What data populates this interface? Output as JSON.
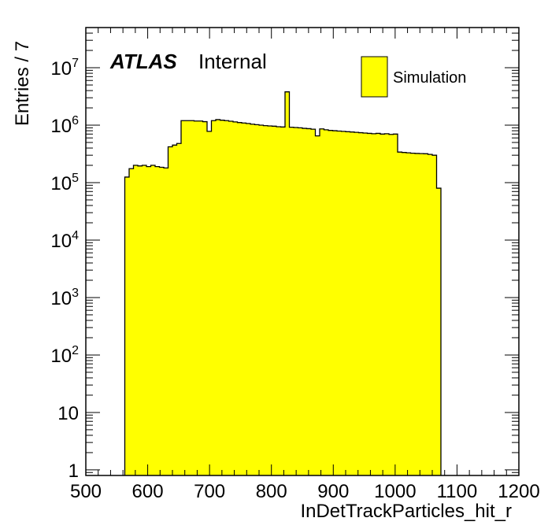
{
  "chart_data": {
    "type": "bar",
    "xlabel": "InDetTrackParticles_hit_r",
    "ylabel": "Entries / 7",
    "xlim": [
      500,
      1200
    ],
    "ylim": [
      0.8,
      50000000
    ],
    "yscale": "log",
    "grid": false,
    "legend_position": "top-right",
    "atlas_label": "ATLAS",
    "atlas_status": "Internal",
    "fill_color": "#ffff00",
    "line_color": "#000000",
    "bin_width": 7,
    "x_ticks": [
      "500",
      "600",
      "700",
      "800",
      "900",
      "1000",
      "1100",
      "1200"
    ],
    "x_tick_values": [
      500,
      600,
      700,
      800,
      900,
      1000,
      1100,
      1200
    ],
    "y_ticks": [
      {
        "value": 1,
        "base": "1",
        "exp": ""
      },
      {
        "value": 10,
        "base": "10",
        "exp": ""
      },
      {
        "value": 100,
        "base": "10",
        "exp": "2"
      },
      {
        "value": 1000,
        "base": "10",
        "exp": "3"
      },
      {
        "value": 10000,
        "base": "10",
        "exp": "4"
      },
      {
        "value": 100000,
        "base": "10",
        "exp": "5"
      },
      {
        "value": 1000000,
        "base": "10",
        "exp": "6"
      },
      {
        "value": 10000000,
        "base": "10",
        "exp": "7"
      }
    ],
    "series": [
      {
        "name": "Simulation",
        "x": [
          563,
          570,
          577,
          584,
          591,
          598,
          605,
          612,
          619,
          626,
          633,
          640,
          647,
          654,
          661,
          668,
          675,
          682,
          689,
          696,
          703,
          710,
          717,
          724,
          731,
          738,
          745,
          752,
          759,
          766,
          773,
          780,
          787,
          794,
          801,
          808,
          815,
          822,
          829,
          836,
          843,
          850,
          857,
          864,
          871,
          878,
          885,
          892,
          899,
          906,
          913,
          920,
          927,
          934,
          941,
          948,
          955,
          962,
          969,
          976,
          983,
          990,
          997,
          1004,
          1011,
          1018,
          1025,
          1032,
          1039,
          1046,
          1053,
          1060,
          1067
        ],
        "values": [
          125000,
          175000,
          200000,
          195000,
          200000,
          190000,
          200000,
          190000,
          185000,
          180000,
          420000,
          450000,
          480000,
          1200000,
          1200000,
          1200000,
          1180000,
          1180000,
          1150000,
          780000,
          1200000,
          1250000,
          1220000,
          1200000,
          1170000,
          1140000,
          1110000,
          1090000,
          1070000,
          1040000,
          1020000,
          1000000,
          980000,
          970000,
          960000,
          940000,
          930000,
          3800000,
          920000,
          910000,
          900000,
          880000,
          870000,
          850000,
          650000,
          860000,
          830000,
          810000,
          800000,
          790000,
          780000,
          770000,
          760000,
          750000,
          740000,
          730000,
          720000,
          710000,
          720000,
          700000,
          710000,
          690000,
          700000,
          340000,
          335000,
          330000,
          325000,
          322000,
          320000,
          318000,
          310000,
          300000,
          80000
        ]
      }
    ]
  }
}
